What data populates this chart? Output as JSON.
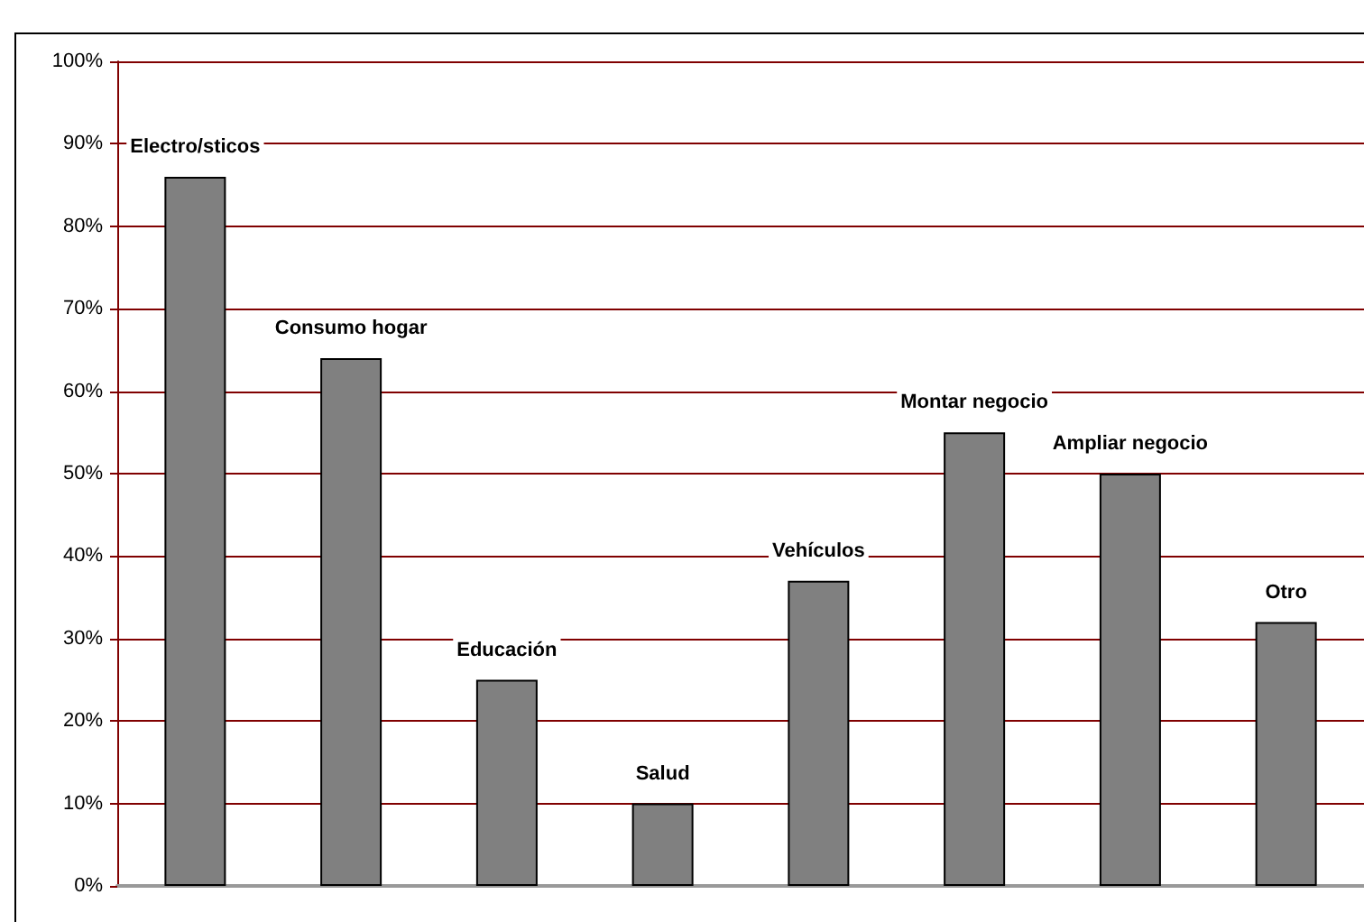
{
  "chart_data": {
    "type": "bar",
    "categories": [
      "Electro/sticos",
      "Consumo hogar",
      "Educación",
      "Salud",
      "Vehículos",
      "Montar negocio",
      "Ampliar negocio",
      "Otro"
    ],
    "values": [
      86,
      64,
      25,
      10,
      37,
      55,
      50,
      32
    ],
    "color": "#808080",
    "ylim": [
      0,
      100
    ],
    "yticks": [
      {
        "value": 0,
        "label": "0%"
      },
      {
        "value": 10,
        "label": "10%"
      },
      {
        "value": 20,
        "label": "20%"
      },
      {
        "value": 30,
        "label": "30%"
      },
      {
        "value": 40,
        "label": "40%"
      },
      {
        "value": 50,
        "label": "50%"
      },
      {
        "value": 60,
        "label": "60%"
      },
      {
        "value": 70,
        "label": "70%"
      },
      {
        "value": 80,
        "label": "80%"
      },
      {
        "value": 90,
        "label": "90%"
      },
      {
        "value": 100,
        "label": "100%"
      }
    ],
    "grid": "y",
    "tick_labels": "y"
  }
}
